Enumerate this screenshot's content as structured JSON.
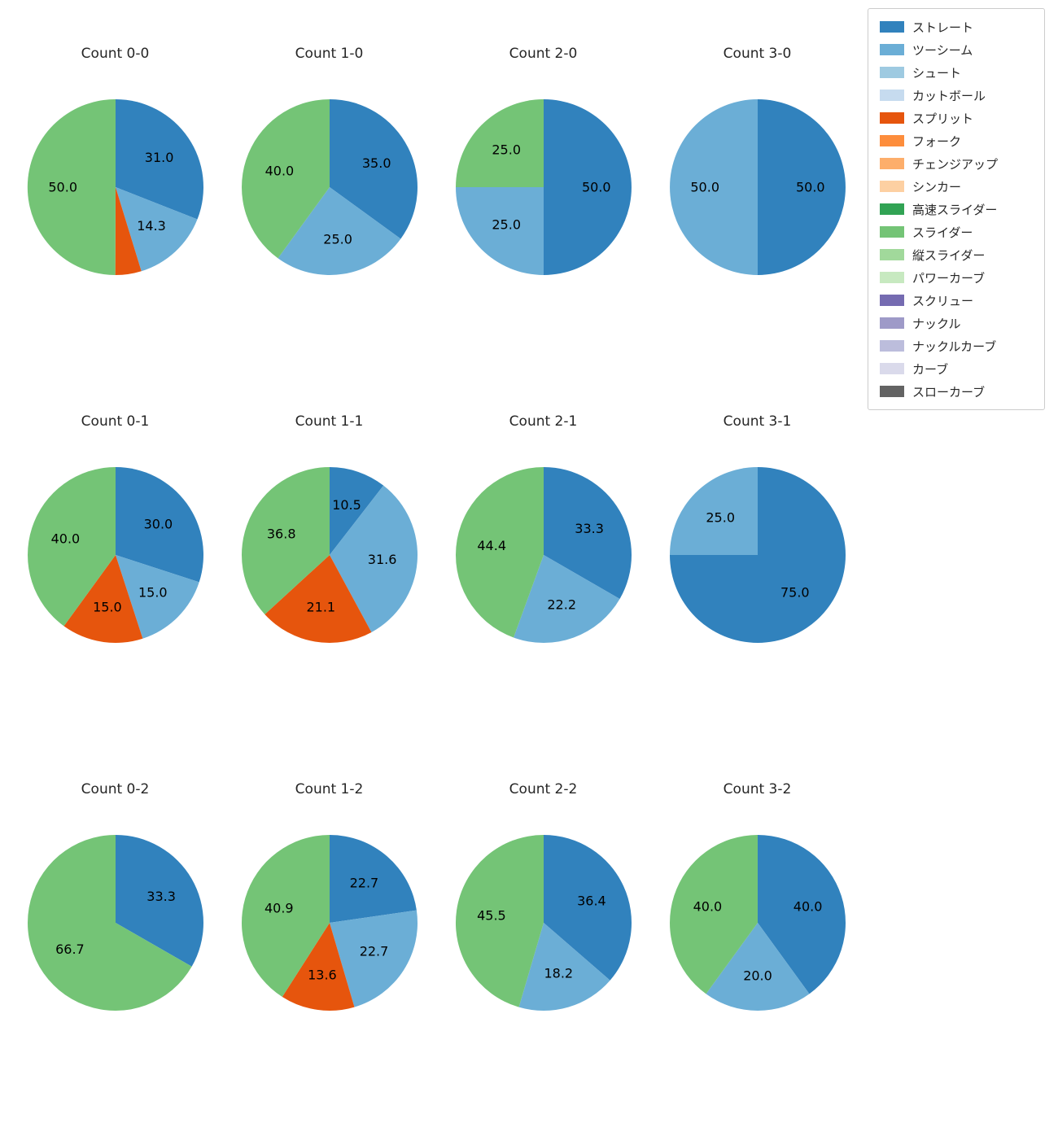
{
  "figure": {
    "background": "#ffffff",
    "text_color": "#262626"
  },
  "pie_style": {
    "start_angle_deg": 90,
    "direction": "clockwise",
    "label_distance": 0.6
  },
  "legend": {
    "position": "upper right",
    "items": [
      {
        "label": "ストレート",
        "color": "#3182bd"
      },
      {
        "label": "ツーシーム",
        "color": "#6baed6"
      },
      {
        "label": "シュート",
        "color": "#9ecae1"
      },
      {
        "label": "カットボール",
        "color": "#c6dbef"
      },
      {
        "label": "スプリット",
        "color": "#e6550d"
      },
      {
        "label": "フォーク",
        "color": "#fd8d3c"
      },
      {
        "label": "チェンジアップ",
        "color": "#fdae6b"
      },
      {
        "label": "シンカー",
        "color": "#fdd0a2"
      },
      {
        "label": "高速スライダー",
        "color": "#31a354"
      },
      {
        "label": "スライダー",
        "color": "#74c476"
      },
      {
        "label": "縦スライダー",
        "color": "#a1d99b"
      },
      {
        "label": "パワーカーブ",
        "color": "#c7e9c0"
      },
      {
        "label": "スクリュー",
        "color": "#756bb1"
      },
      {
        "label": "ナックル",
        "color": "#9e9ac8"
      },
      {
        "label": "ナックルカーブ",
        "color": "#bcbddc"
      },
      {
        "label": "カーブ",
        "color": "#dadaeb"
      },
      {
        "label": "スローカーブ",
        "color": "#636363"
      }
    ]
  },
  "chart_data": [
    {
      "type": "pie",
      "title": "Count 0-0",
      "labels": [
        "ストレート",
        "ツーシーム",
        "スプリット",
        "スライダー"
      ],
      "values": [
        31.0,
        14.3,
        4.8,
        50.0
      ],
      "autopct_labels": [
        "31.0",
        "14.3",
        "",
        "50.0"
      ]
    },
    {
      "type": "pie",
      "title": "Count 1-0",
      "labels": [
        "ストレート",
        "ツーシーム",
        "スライダー"
      ],
      "values": [
        35.0,
        25.0,
        40.0
      ],
      "autopct_labels": [
        "35.0",
        "25.0",
        "40.0"
      ]
    },
    {
      "type": "pie",
      "title": "Count 2-0",
      "labels": [
        "ストレート",
        "ツーシーム",
        "スライダー"
      ],
      "values": [
        50.0,
        25.0,
        25.0
      ],
      "autopct_labels": [
        "50.0",
        "25.0",
        "25.0"
      ]
    },
    {
      "type": "pie",
      "title": "Count 3-0",
      "labels": [
        "ストレート",
        "ツーシーム"
      ],
      "values": [
        50.0,
        50.0
      ],
      "autopct_labels": [
        "50.0",
        "50.0"
      ]
    },
    {
      "type": "pie",
      "title": "Count 0-1",
      "labels": [
        "ストレート",
        "ツーシーム",
        "スプリット",
        "スライダー"
      ],
      "values": [
        30.0,
        15.0,
        15.0,
        40.0
      ],
      "autopct_labels": [
        "30.0",
        "15.0",
        "15.0",
        "40.0"
      ]
    },
    {
      "type": "pie",
      "title": "Count 1-1",
      "labels": [
        "ストレート",
        "ツーシーム",
        "スプリット",
        "スライダー"
      ],
      "values": [
        10.5,
        31.6,
        21.1,
        36.8
      ],
      "autopct_labels": [
        "10.5",
        "31.6",
        "21.1",
        "36.8"
      ]
    },
    {
      "type": "pie",
      "title": "Count 2-1",
      "labels": [
        "ストレート",
        "ツーシーム",
        "スライダー"
      ],
      "values": [
        33.3,
        22.2,
        44.4
      ],
      "autopct_labels": [
        "33.3",
        "22.2",
        "44.4"
      ]
    },
    {
      "type": "pie",
      "title": "Count 3-1",
      "labels": [
        "ストレート",
        "ツーシーム"
      ],
      "values": [
        75.0,
        25.0
      ],
      "autopct_labels": [
        "75.0",
        "25.0"
      ]
    },
    {
      "type": "pie",
      "title": "Count 0-2",
      "labels": [
        "ストレート",
        "スライダー"
      ],
      "values": [
        33.3,
        66.7
      ],
      "autopct_labels": [
        "33.3",
        "66.7"
      ]
    },
    {
      "type": "pie",
      "title": "Count 1-2",
      "labels": [
        "ストレート",
        "ツーシーム",
        "スプリット",
        "スライダー"
      ],
      "values": [
        22.7,
        22.7,
        13.6,
        40.9
      ],
      "autopct_labels": [
        "22.7",
        "22.7",
        "13.6",
        "40.9"
      ]
    },
    {
      "type": "pie",
      "title": "Count 2-2",
      "labels": [
        "ストレート",
        "ツーシーム",
        "スライダー"
      ],
      "values": [
        36.4,
        18.2,
        45.5
      ],
      "autopct_labels": [
        "36.4",
        "18.2",
        "45.5"
      ]
    },
    {
      "type": "pie",
      "title": "Count 3-2",
      "labels": [
        "ストレート",
        "ツーシーム",
        "スライダー"
      ],
      "values": [
        40.0,
        20.0,
        40.0
      ],
      "autopct_labels": [
        "40.0",
        "20.0",
        "40.0"
      ]
    }
  ]
}
